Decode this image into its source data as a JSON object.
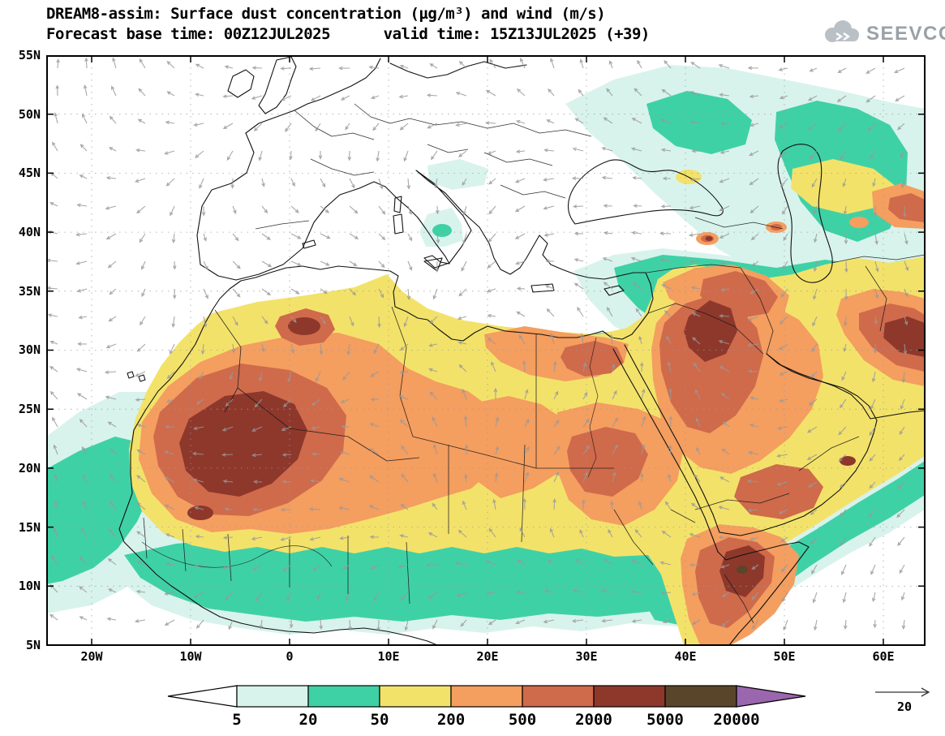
{
  "header": {
    "title_line1": "DREAM8-assim: Surface dust concentration (µg/m³) and wind (m/s)",
    "title_line2": "Forecast base time: 00Z12JUL2025      valid time: 15Z13JUL2025 (+39)",
    "logo_text": "SEEVCCC"
  },
  "axes": {
    "lat_labels": [
      "55N",
      "50N",
      "45N",
      "40N",
      "35N",
      "30N",
      "25N",
      "20N",
      "15N",
      "10N",
      "5N"
    ],
    "lon_labels": [
      "20W",
      "10W",
      "0",
      "10E",
      "20E",
      "30E",
      "40E",
      "50E",
      "60E"
    ]
  },
  "colorbar": {
    "labels": [
      "5",
      "20",
      "50",
      "200",
      "500",
      "2000",
      "5000",
      "20000"
    ]
  },
  "wind_ref": {
    "label": "20"
  },
  "chart_data": {
    "type": "heatmap",
    "subtype": "filled-contour-geographic-map with wind vector overlay",
    "title": "DREAM8-assim: Surface dust concentration (µg/m³) and wind (m/s)",
    "model": "DREAM8-assim",
    "variable": "surface dust concentration",
    "units": "µg/m³",
    "overlay": "wind vectors (m/s)",
    "forecast_base_time": "00Z12JUL2025",
    "valid_time": "15Z13JUL2025",
    "forecast_offset_hours": 39,
    "lon_range": [
      -25,
      65
    ],
    "lat_range": [
      5,
      55
    ],
    "lon_ticks": [
      "20W",
      "10W",
      "0",
      "10E",
      "20E",
      "30E",
      "40E",
      "50E",
      "60E"
    ],
    "lat_ticks": [
      "5N",
      "10N",
      "15N",
      "20N",
      "25N",
      "30N",
      "35N",
      "40N",
      "45N",
      "50N",
      "55N"
    ],
    "contour_levels_ugm3": [
      5,
      20,
      50,
      200,
      500,
      2000,
      5000,
      20000
    ],
    "wind_reference_ms": 20,
    "legend_position": "bottom",
    "grid": "dotted graticule every 5 deg lat / 10 deg lon",
    "level_colors": {
      "under": "#ffffff",
      "lvl_5_20": "#d8f3ec",
      "lvl_20_50": "#3fd1a6",
      "lvl_50_200": "#f3e26a",
      "lvl_200_500": "#f49e60",
      "lvl_500_2000": "#cf6a4b",
      "lvl_2000_5000": "#8e382c",
      "lvl_5000_20000": "#59462a",
      "over": "#9a66ad"
    },
    "dust_maxima": [
      {
        "region": "western Sahara (Mauritania / Mali / S Algeria)",
        "approx_lon": -8,
        "approx_lat": 21,
        "level_ugm3": "2000-5000"
      },
      {
        "region": "northern Algeria",
        "approx_lon": 1,
        "approx_lat": 32,
        "level_ugm3": "2000-5000"
      },
      {
        "region": "northwestern Saudi Arabia",
        "approx_lon": 40,
        "approx_lat": 29,
        "level_ugm3": "2000-5000"
      },
      {
        "region": "Horn of Africa (Djibouti / NE Ethiopia)",
        "approx_lon": 44,
        "approx_lat": 9,
        "level_ugm3": "2000-5000"
      },
      {
        "region": "southeastern Iran",
        "approx_lon": 61,
        "approx_lat": 29,
        "level_ugm3": "2000-5000"
      },
      {
        "region": "central Sahara (Niger / Chad)",
        "approx_lon": 12,
        "approx_lat": 19,
        "level_ugm3": "500-2000"
      },
      {
        "region": "Iraq",
        "approx_lon": 44,
        "approx_lat": 32,
        "level_ugm3": "500-2000"
      },
      {
        "region": "southern Arabian peninsula",
        "approx_lon": 50,
        "approx_lat": 18,
        "level_ugm3": "500-2000"
      }
    ],
    "background_regions": [
      {
        "region": "Sahel band 10-14N across Africa",
        "level_ugm3": "20-50"
      },
      {
        "region": "eastern Atlantic off West Africa",
        "level_ugm3": "5-50"
      },
      {
        "region": "Anatolia / Caucasus / Caspian",
        "level_ugm3": "5-50"
      },
      {
        "region": "Arabian Sea coastal band",
        "level_ugm3": "20-50"
      },
      {
        "region": "most of Europe and central Mediterranean",
        "level_ugm3": "<5"
      }
    ]
  }
}
